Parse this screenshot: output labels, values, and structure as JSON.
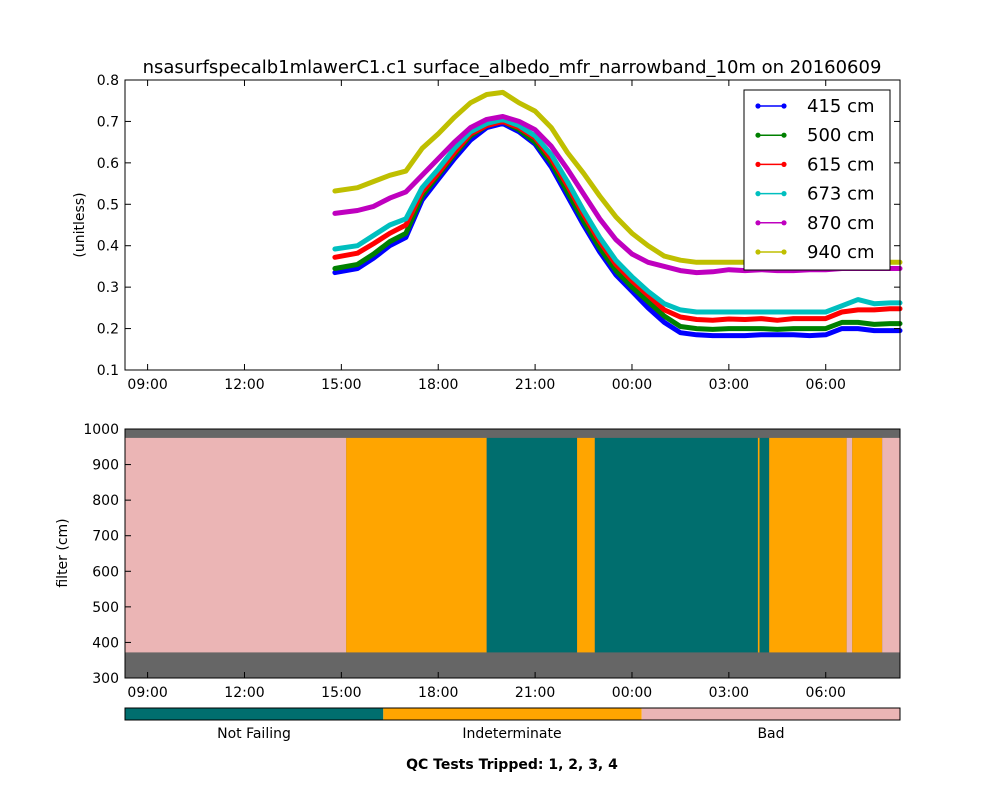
{
  "figure": {
    "colorbar": {
      "labels": [
        "Not Failing",
        "Indeterminate",
        "Bad"
      ],
      "colors": [
        "#006e6e",
        "#ffa500",
        "#ebb5b5"
      ]
    },
    "footer": "QC Tests Tripped: 1, 2, 3, 4"
  },
  "chart_data": [
    {
      "type": "line",
      "title": "nsasurfspecalb1mlawerC1.c1 surface_albedo_mfr_narrowband_10m on 20160609",
      "xlabel": "",
      "ylabel": "(unitless)",
      "x_unit": "hours since 00:00 on 20160609",
      "xlim": [
        8.3,
        32.3
      ],
      "ylim": [
        0.1,
        0.8
      ],
      "xticks": [
        9,
        12,
        15,
        18,
        21,
        24,
        27,
        30
      ],
      "xtick_labels": [
        "09:00",
        "12:00",
        "15:00",
        "18:00",
        "21:00",
        "00:00",
        "03:00",
        "06:00"
      ],
      "yticks": [
        0.1,
        0.2,
        0.3,
        0.4,
        0.5,
        0.6,
        0.7,
        0.8
      ],
      "ytick_labels": [
        "0.1",
        "0.2",
        "0.3",
        "0.4",
        "0.5",
        "0.6",
        "0.7",
        "0.8"
      ],
      "grid": false,
      "legend_position": "top-right",
      "x": [
        14.8,
        15.5,
        16.0,
        16.5,
        17.0,
        17.5,
        18.0,
        18.5,
        19.0,
        19.5,
        20.0,
        20.5,
        21.0,
        21.5,
        22.0,
        22.5,
        23.0,
        23.5,
        24.0,
        24.5,
        25.0,
        25.5,
        26.0,
        26.5,
        27.0,
        27.5,
        28.0,
        28.5,
        29.0,
        29.5,
        30.0,
        30.5,
        31.0,
        31.5,
        32.0,
        32.3
      ],
      "series": [
        {
          "name": "415 cm",
          "color": "#0000ff",
          "values": [
            0.335,
            0.345,
            0.37,
            0.4,
            0.42,
            0.51,
            0.56,
            0.61,
            0.655,
            0.685,
            0.695,
            0.675,
            0.645,
            0.59,
            0.52,
            0.45,
            0.385,
            0.33,
            0.29,
            0.25,
            0.215,
            0.19,
            0.185,
            0.183,
            0.183,
            0.183,
            0.185,
            0.185,
            0.185,
            0.183,
            0.185,
            0.2,
            0.2,
            0.195,
            0.195,
            0.195
          ]
        },
        {
          "name": "500 cm",
          "color": "#008000",
          "values": [
            0.345,
            0.355,
            0.38,
            0.41,
            0.43,
            0.52,
            0.57,
            0.62,
            0.665,
            0.69,
            0.7,
            0.68,
            0.65,
            0.6,
            0.53,
            0.46,
            0.395,
            0.34,
            0.3,
            0.265,
            0.23,
            0.205,
            0.2,
            0.198,
            0.2,
            0.2,
            0.2,
            0.198,
            0.2,
            0.2,
            0.2,
            0.215,
            0.215,
            0.21,
            0.212,
            0.212
          ]
        },
        {
          "name": "615 cm",
          "color": "#ff0000",
          "values": [
            0.372,
            0.382,
            0.405,
            0.43,
            0.45,
            0.53,
            0.575,
            0.625,
            0.67,
            0.69,
            0.7,
            0.685,
            0.66,
            0.61,
            0.545,
            0.475,
            0.41,
            0.355,
            0.315,
            0.28,
            0.245,
            0.228,
            0.222,
            0.22,
            0.223,
            0.222,
            0.224,
            0.22,
            0.224,
            0.224,
            0.224,
            0.24,
            0.245,
            0.245,
            0.248,
            0.248
          ]
        },
        {
          "name": "673 cm",
          "color": "#00bfbf",
          "values": [
            0.392,
            0.4,
            0.425,
            0.45,
            0.465,
            0.54,
            0.585,
            0.635,
            0.675,
            0.695,
            0.705,
            0.69,
            0.665,
            0.62,
            0.555,
            0.485,
            0.42,
            0.365,
            0.325,
            0.29,
            0.26,
            0.245,
            0.24,
            0.24,
            0.24,
            0.24,
            0.24,
            0.24,
            0.24,
            0.24,
            0.24,
            0.255,
            0.27,
            0.26,
            0.262,
            0.262
          ]
        },
        {
          "name": "870 cm",
          "color": "#bf00bf",
          "values": [
            0.478,
            0.485,
            0.495,
            0.515,
            0.53,
            0.57,
            0.61,
            0.65,
            0.685,
            0.705,
            0.712,
            0.7,
            0.68,
            0.64,
            0.585,
            0.525,
            0.465,
            0.415,
            0.38,
            0.36,
            0.35,
            0.34,
            0.335,
            0.337,
            0.342,
            0.34,
            0.342,
            0.34,
            0.34,
            0.342,
            0.342,
            0.345,
            0.345,
            0.345,
            0.345,
            0.345
          ]
        },
        {
          "name": "940 cm",
          "color": "#bfbf00",
          "values": [
            0.532,
            0.54,
            0.555,
            0.57,
            0.58,
            0.635,
            0.67,
            0.71,
            0.745,
            0.765,
            0.77,
            0.745,
            0.725,
            0.685,
            0.625,
            0.575,
            0.52,
            0.47,
            0.43,
            0.4,
            0.375,
            0.365,
            0.36,
            0.36,
            0.36,
            0.36,
            0.36,
            0.36,
            0.36,
            0.36,
            0.36,
            0.36,
            0.36,
            0.36,
            0.36,
            0.36
          ]
        }
      ]
    },
    {
      "type": "heatmap",
      "title": "",
      "xlabel": "",
      "ylabel": "filter (cm)",
      "x_unit": "hours since 00:00 on 20160609",
      "xlim": [
        8.3,
        32.3
      ],
      "ylim": [
        300,
        1000
      ],
      "xticks": [
        9,
        12,
        15,
        18,
        21,
        24,
        27,
        30
      ],
      "xtick_labels": [
        "09:00",
        "12:00",
        "15:00",
        "18:00",
        "21:00",
        "00:00",
        "03:00",
        "06:00"
      ],
      "yticks": [
        300,
        400,
        500,
        600,
        700,
        800,
        900,
        1000
      ],
      "ytick_labels": [
        "300",
        "400",
        "500",
        "600",
        "700",
        "800",
        "900",
        "1000"
      ],
      "filter_range": [
        372,
        975
      ],
      "outside_color": "#666666",
      "segments": [
        {
          "start": 8.3,
          "end": 15.15,
          "state": "Bad"
        },
        {
          "start": 15.15,
          "end": 19.5,
          "state": "Indeterminate"
        },
        {
          "start": 19.5,
          "end": 22.3,
          "state": "Not Failing"
        },
        {
          "start": 22.3,
          "end": 22.85,
          "state": "Indeterminate"
        },
        {
          "start": 22.85,
          "end": 27.9,
          "state": "Not Failing"
        },
        {
          "start": 27.9,
          "end": 27.95,
          "state": "Indeterminate"
        },
        {
          "start": 27.95,
          "end": 28.25,
          "state": "Not Failing"
        },
        {
          "start": 28.25,
          "end": 30.65,
          "state": "Indeterminate"
        },
        {
          "start": 30.65,
          "end": 30.82,
          "state": "Bad"
        },
        {
          "start": 30.82,
          "end": 31.75,
          "state": "Indeterminate"
        },
        {
          "start": 31.75,
          "end": 32.3,
          "state": "Bad"
        }
      ]
    }
  ]
}
